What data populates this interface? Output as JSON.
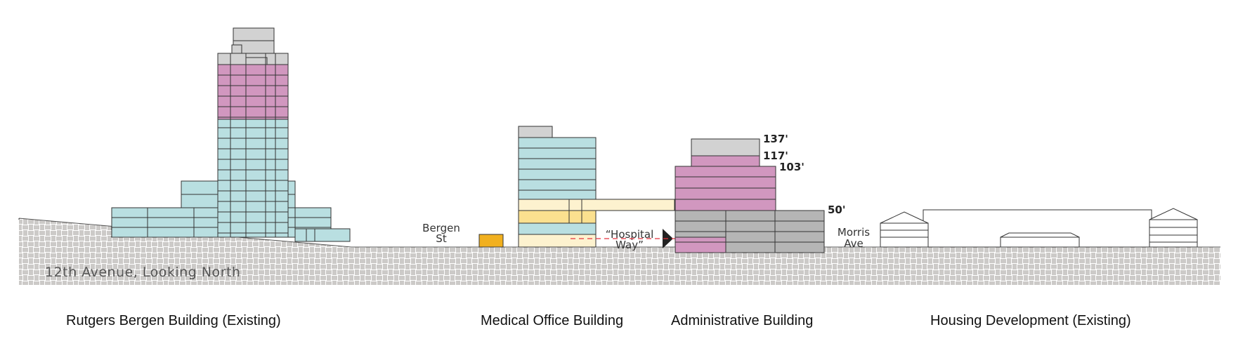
{
  "colors": {
    "existing_blue": "#b9dfe1",
    "mixed_pink": "#d197bf",
    "mech_gray": "#d2d2d2",
    "admin_gray": "#b5b5b5",
    "light_yellow": "#fdf2cf",
    "yellow": "#fbe08f",
    "orange": "#f1b01f",
    "outline": "#333333",
    "ground_pattern": "#9a9590",
    "dashed_line": "#e8323c"
  },
  "ground": {
    "label": "12th Avenue, Looking North"
  },
  "streets": {
    "bergen": {
      "line1": "Bergen",
      "line2": "St"
    },
    "hospital_way": {
      "line1": "“Hospital",
      "line2": "Way”"
    },
    "morris": {
      "line1": "Morris",
      "line2": "Ave"
    }
  },
  "heights": [
    "137'",
    "117'",
    "103'",
    "50'"
  ],
  "buildings": [
    {
      "label": "Rutgers Bergen Building  (Existing)"
    },
    {
      "label": "Medical Office Building"
    },
    {
      "label": "Administrative Building"
    },
    {
      "label": "Housing Development (Existing)"
    }
  ]
}
